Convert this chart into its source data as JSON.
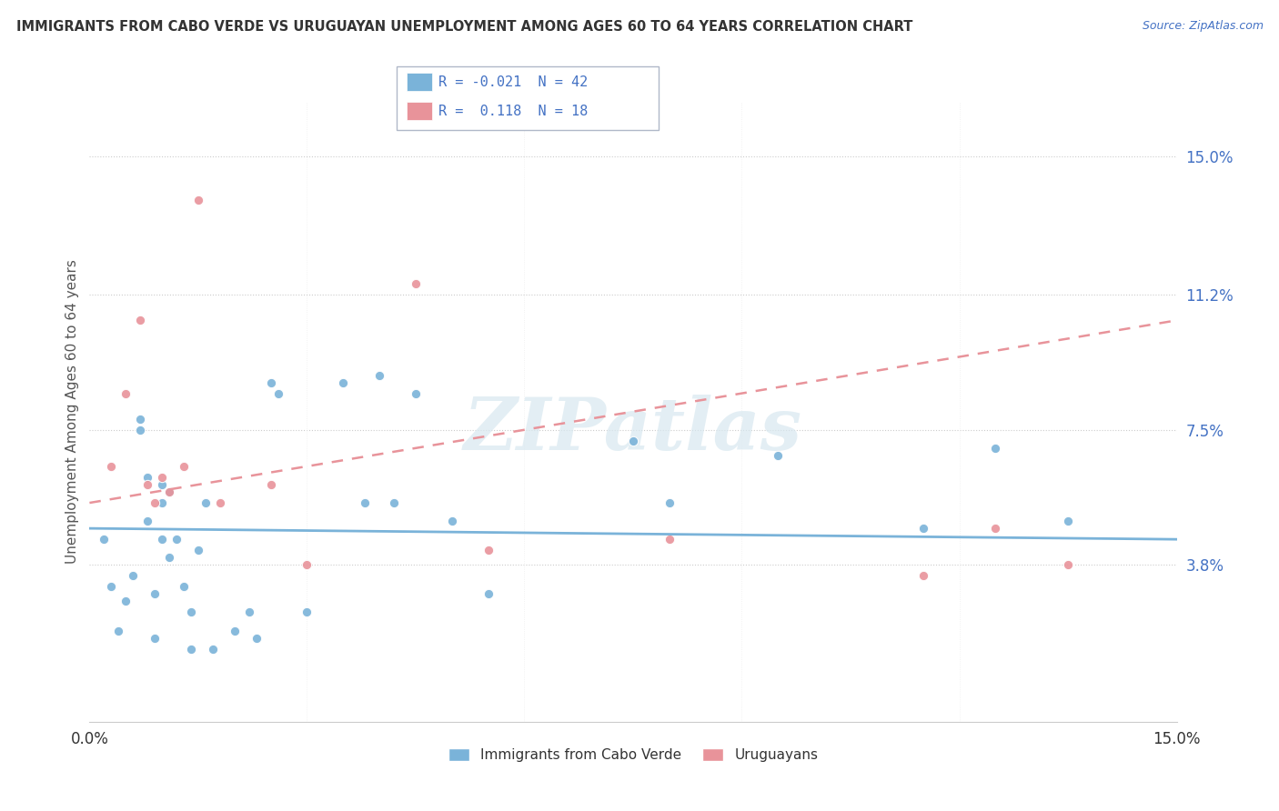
{
  "title": "IMMIGRANTS FROM CABO VERDE VS URUGUAYAN UNEMPLOYMENT AMONG AGES 60 TO 64 YEARS CORRELATION CHART",
  "source": "Source: ZipAtlas.com",
  "ylabel": "Unemployment Among Ages 60 to 64 years",
  "xlim": [
    0,
    15
  ],
  "ylim": [
    -0.5,
    16.5
  ],
  "ytick_positions": [
    3.8,
    7.5,
    11.2,
    15.0
  ],
  "ytick_labels": [
    "3.8%",
    "7.5%",
    "11.2%",
    "15.0%"
  ],
  "color_blue": "#7ab3d9",
  "color_pink": "#e8939a",
  "legend_entries": [
    {
      "label": "R = -0.021  N = 42"
    },
    {
      "label": "R =  0.118  N = 18"
    }
  ],
  "legend_labels_bottom": [
    "Immigrants from Cabo Verde",
    "Uruguayans"
  ],
  "blue_scatter_x": [
    0.2,
    0.3,
    0.4,
    0.5,
    0.6,
    0.7,
    0.7,
    0.8,
    0.8,
    0.9,
    0.9,
    1.0,
    1.0,
    1.0,
    1.1,
    1.1,
    1.2,
    1.3,
    1.4,
    1.4,
    1.5,
    1.6,
    1.7,
    2.0,
    2.2,
    2.3,
    2.5,
    2.6,
    3.0,
    3.5,
    3.8,
    4.0,
    4.2,
    4.5,
    5.0,
    5.5,
    7.5,
    8.0,
    9.5,
    11.5,
    12.5,
    13.5
  ],
  "blue_scatter_y": [
    4.5,
    3.2,
    2.0,
    2.8,
    3.5,
    7.8,
    7.5,
    6.2,
    5.0,
    3.0,
    1.8,
    6.0,
    5.5,
    4.5,
    5.8,
    4.0,
    4.5,
    3.2,
    2.5,
    1.5,
    4.2,
    5.5,
    1.5,
    2.0,
    2.5,
    1.8,
    8.8,
    8.5,
    2.5,
    8.8,
    5.5,
    9.0,
    5.5,
    8.5,
    5.0,
    3.0,
    7.2,
    5.5,
    6.8,
    4.8,
    7.0,
    5.0
  ],
  "pink_scatter_x": [
    0.3,
    0.5,
    0.7,
    0.8,
    0.9,
    1.0,
    1.1,
    1.3,
    1.5,
    1.8,
    2.5,
    3.0,
    4.5,
    5.5,
    8.0,
    11.5,
    12.5,
    13.5
  ],
  "pink_scatter_y": [
    6.5,
    8.5,
    10.5,
    6.0,
    5.5,
    6.2,
    5.8,
    6.5,
    13.8,
    5.5,
    6.0,
    3.8,
    11.5,
    4.2,
    4.5,
    3.5,
    4.8,
    3.8
  ],
  "watermark": "ZIPatlas",
  "blue_line_x0": 0,
  "blue_line_y0": 4.8,
  "blue_line_x1": 15,
  "blue_line_y1": 4.5,
  "pink_line_x0": 0,
  "pink_line_y0": 5.5,
  "pink_line_x1": 15,
  "pink_line_y1": 10.5,
  "background_color": "#ffffff"
}
